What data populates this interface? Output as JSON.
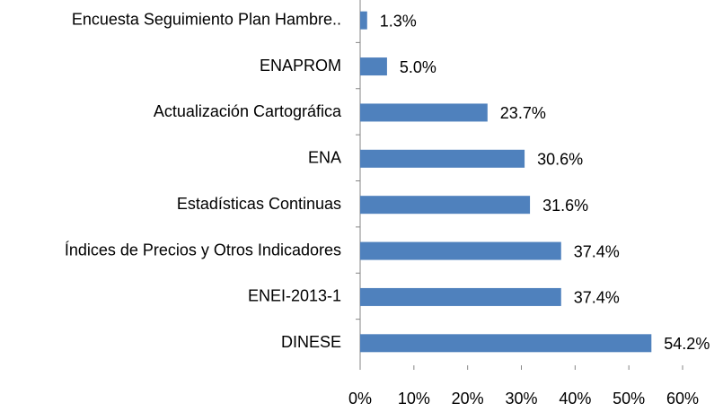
{
  "chart_data": {
    "type": "bar",
    "orientation": "horizontal",
    "categories": [
      "Encuesta Seguimiento Plan Hambre..",
      "ENAPROM",
      "Actualización Cartográfica",
      "ENA",
      "Estadísticas Continuas",
      "Índices de Precios y Otros Indicadores",
      "ENEI-2013-1",
      "DINESE"
    ],
    "values": [
      1.3,
      5.0,
      23.7,
      30.6,
      31.6,
      37.4,
      37.4,
      54.2
    ],
    "value_labels": [
      "1.3%",
      "5.0%",
      "23.7%",
      "30.6%",
      "31.6%",
      "37.4%",
      "37.4%",
      "54.2%"
    ],
    "color": "#4f81bd",
    "xlim": [
      0,
      60
    ],
    "xticks": [
      {
        "value": 0,
        "label": "0%"
      },
      {
        "value": 10,
        "label": "10%"
      },
      {
        "value": 20,
        "label": "20%"
      },
      {
        "value": 30,
        "label": "30%"
      },
      {
        "value": 40,
        "label": "40%"
      },
      {
        "value": 50,
        "label": "50%"
      },
      {
        "value": 60,
        "label": "60%"
      }
    ]
  }
}
